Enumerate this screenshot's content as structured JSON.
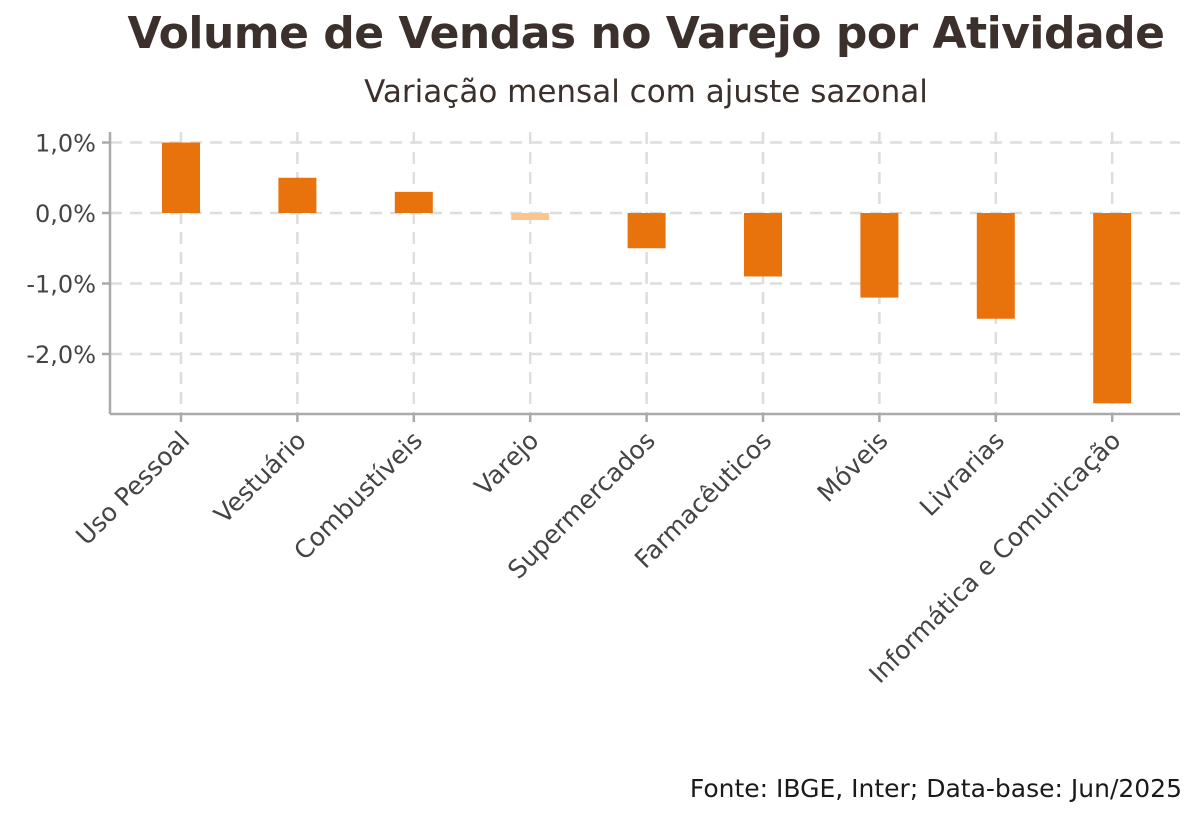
{
  "header": {
    "title": "Volume de Vendas no Varejo por Atividade",
    "subtitle": "Variação mensal com ajuste sazonal"
  },
  "footer": {
    "source": "Fonte: IBGE, Inter; Data-base: Jun/2025"
  },
  "chart_data": {
    "type": "bar",
    "title": "Volume de Vendas no Varejo por Atividade",
    "subtitle": "Variação mensal com ajuste sazonal",
    "xlabel": "",
    "ylabel": "",
    "categories": [
      "Uso Pessoal",
      "Vestuário",
      "Combustíveis",
      "Varejo",
      "Supermercados",
      "Farmacêuticos",
      "Móveis",
      "Livrarias",
      "Informática e Comunicação"
    ],
    "values": [
      1.0,
      0.5,
      0.3,
      -0.1,
      -0.5,
      -0.9,
      -1.2,
      -1.5,
      -2.7
    ],
    "highlight_category": "Varejo",
    "colors": {
      "bar": "#e8720b",
      "highlight": "#fdc58e",
      "grid": "#dddddd",
      "axis": "#aaaaaa"
    },
    "ylim": [
      -2.8,
      1.05
    ],
    "yticks": [
      1.0,
      0.0,
      -1.0,
      -2.0
    ],
    "ytick_labels": [
      "1,0%",
      "0,0%",
      "-1,0%",
      "-2,0%"
    ],
    "grid": true,
    "legend": "none"
  }
}
